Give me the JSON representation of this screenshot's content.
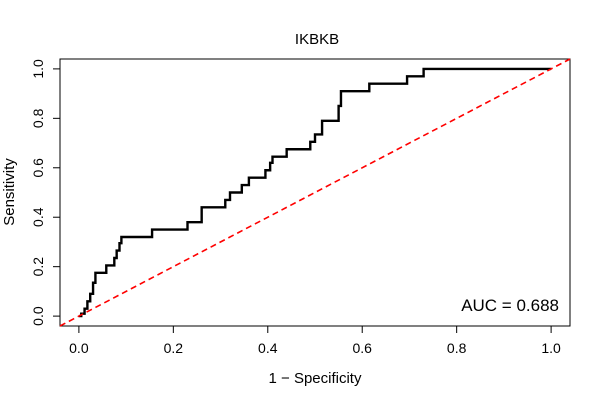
{
  "chart_data": {
    "type": "line",
    "title": "IKBKB",
    "xlabel": "1 − Specificity",
    "ylabel": "Sensitivity",
    "xlim": [
      -0.04,
      1.04
    ],
    "ylim": [
      -0.04,
      1.04
    ],
    "x_ticks": [
      "0.0",
      "0.2",
      "0.4",
      "0.6",
      "0.8",
      "1.0"
    ],
    "y_ticks": [
      "0.0",
      "0.2",
      "0.4",
      "0.6",
      "0.8",
      "1.0"
    ],
    "grid": false,
    "annotation": "AUC = 0.688",
    "series": [
      {
        "color": "#000000",
        "style": "solid",
        "points": [
          [
            0.0,
            0.0
          ],
          [
            0.005,
            0.0
          ],
          [
            0.005,
            0.01
          ],
          [
            0.012,
            0.01
          ],
          [
            0.012,
            0.03
          ],
          [
            0.018,
            0.03
          ],
          [
            0.018,
            0.06
          ],
          [
            0.024,
            0.06
          ],
          [
            0.024,
            0.09
          ],
          [
            0.03,
            0.09
          ],
          [
            0.03,
            0.135
          ],
          [
            0.035,
            0.135
          ],
          [
            0.035,
            0.175
          ],
          [
            0.058,
            0.175
          ],
          [
            0.058,
            0.205
          ],
          [
            0.075,
            0.205
          ],
          [
            0.075,
            0.235
          ],
          [
            0.08,
            0.235
          ],
          [
            0.08,
            0.265
          ],
          [
            0.086,
            0.265
          ],
          [
            0.086,
            0.295
          ],
          [
            0.09,
            0.295
          ],
          [
            0.09,
            0.32
          ],
          [
            0.155,
            0.32
          ],
          [
            0.155,
            0.35
          ],
          [
            0.23,
            0.35
          ],
          [
            0.23,
            0.38
          ],
          [
            0.26,
            0.38
          ],
          [
            0.26,
            0.44
          ],
          [
            0.31,
            0.44
          ],
          [
            0.31,
            0.47
          ],
          [
            0.32,
            0.47
          ],
          [
            0.32,
            0.5
          ],
          [
            0.345,
            0.5
          ],
          [
            0.345,
            0.53
          ],
          [
            0.36,
            0.53
          ],
          [
            0.36,
            0.56
          ],
          [
            0.395,
            0.56
          ],
          [
            0.395,
            0.59
          ],
          [
            0.405,
            0.59
          ],
          [
            0.405,
            0.62
          ],
          [
            0.41,
            0.62
          ],
          [
            0.41,
            0.645
          ],
          [
            0.44,
            0.645
          ],
          [
            0.44,
            0.675
          ],
          [
            0.49,
            0.675
          ],
          [
            0.49,
            0.705
          ],
          [
            0.5,
            0.705
          ],
          [
            0.5,
            0.735
          ],
          [
            0.515,
            0.735
          ],
          [
            0.515,
            0.79
          ],
          [
            0.55,
            0.79
          ],
          [
            0.55,
            0.85
          ],
          [
            0.555,
            0.85
          ],
          [
            0.555,
            0.91
          ],
          [
            0.615,
            0.91
          ],
          [
            0.615,
            0.94
          ],
          [
            0.695,
            0.94
          ],
          [
            0.695,
            0.97
          ],
          [
            0.73,
            0.97
          ],
          [
            0.73,
            1.0
          ],
          [
            1.0,
            1.0
          ]
        ]
      },
      {
        "color": "#ff0000",
        "style": "dashed",
        "points": [
          [
            -0.04,
            -0.04
          ],
          [
            1.04,
            1.04
          ]
        ]
      }
    ]
  }
}
